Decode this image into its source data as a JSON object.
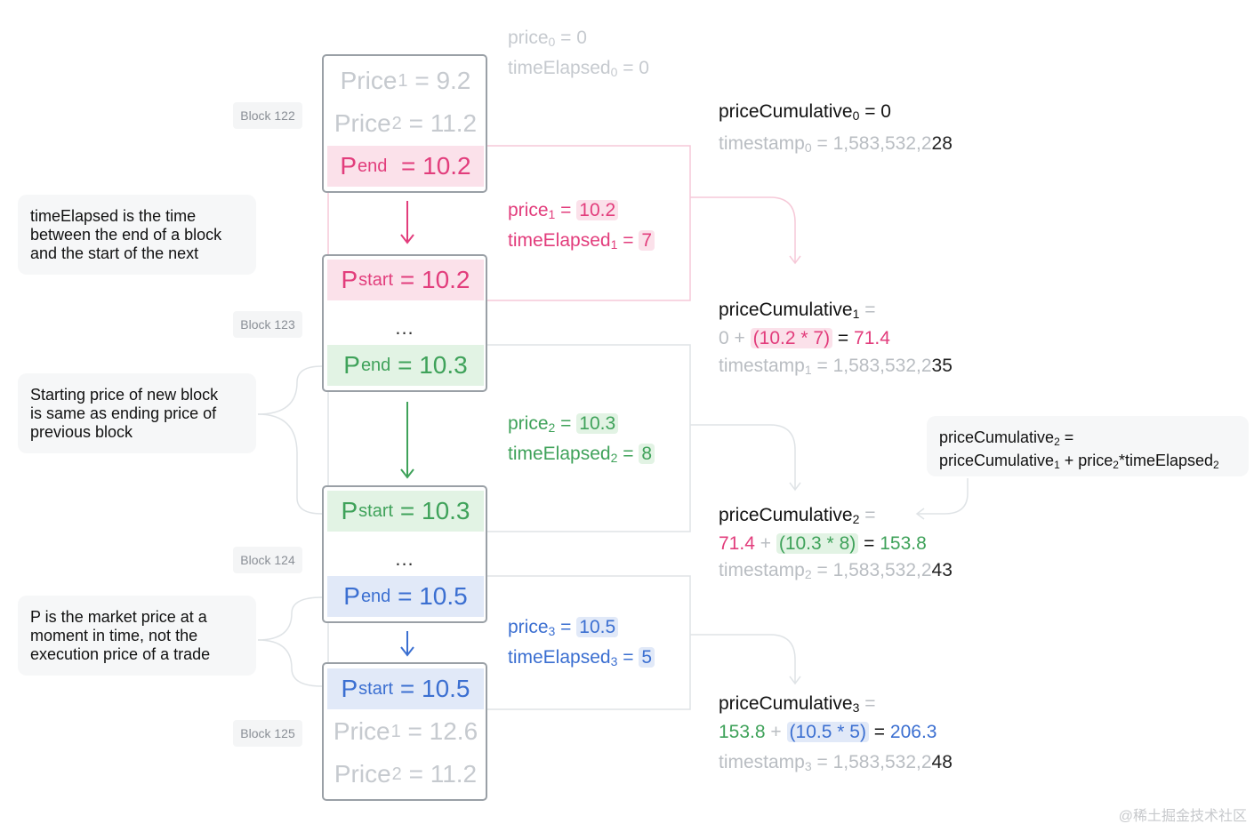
{
  "blocks": {
    "b122": "Block 122",
    "b123": "Block 123",
    "b124": "Block 124",
    "b125": "Block 125"
  },
  "notes": {
    "n1": [
      "timeElapsed is the time",
      "between the end of a block",
      "and the start of the next"
    ],
    "n2": [
      "Starting price of new block",
      "is same as ending price of",
      "previous block"
    ],
    "n3": [
      "P is the market price at a",
      "moment in time, not the",
      "execution price of a trade"
    ]
  },
  "cells": {
    "price1_label": "Price",
    "price1_sub": "1",
    "price1_val": "= 9.2",
    "price2_label": "Price",
    "price2_sub": "2",
    "price2_val": "= 11.2",
    "pend1_sub": "end",
    "pend1_val": "= 10.2",
    "pstart2_sub": "start",
    "pstart2_val": "= 10.2",
    "pend2_val": "= 10.3",
    "pstart3_val": "= 10.3",
    "pend3_val": "= 10.5",
    "pstart4_val": "= 10.5",
    "price1b_val": "= 12.6",
    "price2b_val": "= 11.2",
    "p_letter": "P",
    "dots": "..."
  },
  "middle": {
    "price0": "price",
    "price0_sub": "0",
    "price0_val": "= 0",
    "te0": "timeElapsed",
    "te0_sub": "0",
    "te0_val": "= 0",
    "price_label": "price",
    "te_label": "timeElapsed",
    "eq": "=",
    "p1_sub": "1",
    "p1_val": "10.2",
    "t1_val": "7",
    "p2_sub": "2",
    "p2_val": "10.3",
    "t2_val": "8",
    "p3_sub": "3",
    "p3_val": "10.5",
    "t3_val": "5"
  },
  "right": {
    "pc_label": "priceCumulative",
    "ts_label": "timestamp",
    "pc0_sub": "0",
    "pc0_val": "= 0",
    "ts0_sub": "0",
    "ts0_prefix": "= 1,583,532,2",
    "ts0_suffix": "28",
    "pc1_sub": "1",
    "eq_trail": "=",
    "pc1_a": "0",
    "plus": "+",
    "pc1_b": "(10.2",
    "times": "*",
    "pc1_c": "7)",
    "pc1_res": "71.4",
    "ts1_sub": "1",
    "ts1_prefix": "= 1,583,532,2",
    "ts1_suffix": "35",
    "pc2_sub": "2",
    "pc2_a": "71.4",
    "pc2_b": "(10.3",
    "pc2_c": "8)",
    "pc2_res": "153.8",
    "ts2_sub": "2",
    "ts2_prefix": "= 1,583,532,2",
    "ts2_suffix": "43",
    "pc3_sub": "3",
    "pc3_a": "153.8",
    "pc3_b": "(10.5",
    "pc3_c": "5)",
    "pc3_res": "206.3",
    "ts3_sub": "3",
    "ts3_prefix": "= 1,583,532,2",
    "ts3_suffix": "48"
  },
  "formula": {
    "line1_a": "priceCumulative",
    "line1_sub": "2",
    "line1_b": " =",
    "line2_a": "priceCumulative",
    "line2_sub1": "1",
    "line2_b": " + price",
    "line2_sub2": "2",
    "line2_c": "*timeElapsed",
    "line2_sub3": "2"
  },
  "watermark": "@稀土掘金技术社区",
  "colors": {
    "pink": "#e23d7c",
    "green": "#3fa25a",
    "blue": "#3b6fd1",
    "ghost": "#c6cacf"
  }
}
